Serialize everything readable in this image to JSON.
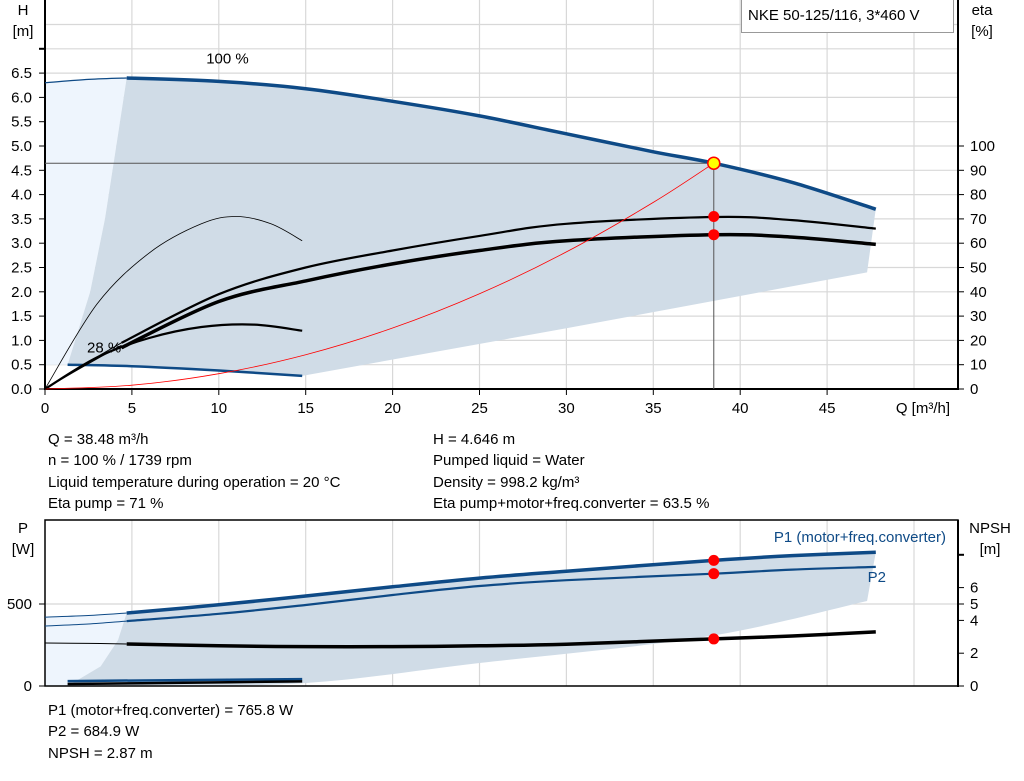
{
  "colors": {
    "curve_blue": "#0e4a86",
    "area_dark": "#d0dce7",
    "area_light": "#eef5fd",
    "duty_point": "#ff0000",
    "duty_fill": "#ffff00",
    "system_curve": "#ff0000"
  },
  "legend_title": "NKE 50-125/116, 3*460 V",
  "chart_data": [
    {
      "type": "line",
      "xlabel": "Q [m³/h]",
      "ylabel": "H\n[m]",
      "ylabel_lines": [
        "H",
        "[m]"
      ],
      "y2label_lines": [
        "eta",
        "[%]"
      ],
      "xticks": [
        "0",
        "5",
        "10",
        "15",
        "20",
        "25",
        "30",
        "35",
        "40",
        "45"
      ],
      "yticks": [
        "0.0",
        "0.5",
        "1.0",
        "1.5",
        "2.0",
        "2.5",
        "3.0",
        "3.5",
        "4.0",
        "4.5",
        "5.0",
        "5.5",
        "6.0",
        "6.5"
      ],
      "y2ticks": [
        "0",
        "10",
        "20",
        "30",
        "40",
        "50",
        "60",
        "70",
        "80",
        "90",
        "100"
      ],
      "xlim": [
        0,
        52.5
      ],
      "ylim": [
        0,
        8
      ],
      "y2lim": [
        0,
        164
      ],
      "grid": true,
      "annotations": [
        {
          "text": "100 %",
          "x": 10.5,
          "y": 6.7
        },
        {
          "text": "28 %",
          "x": 3.4,
          "y": 0.75
        }
      ],
      "series": [
        {
          "id": "h100",
          "x": [
            4.7,
            10,
            15,
            20,
            25,
            30,
            35,
            38.48,
            43,
            47.8
          ],
          "y": [
            6.4,
            6.33,
            6.18,
            5.92,
            5.62,
            5.25,
            4.88,
            4.646,
            4.25,
            3.7
          ]
        },
        {
          "id": "h100_ext",
          "x": [
            0,
            2.5,
            4.7
          ],
          "y": [
            6.3,
            6.37,
            6.4
          ]
        },
        {
          "id": "h28",
          "x": [
            1.3,
            5,
            10,
            14.8
          ],
          "y": [
            0.5,
            0.47,
            0.38,
            0.27
          ]
        },
        {
          "id": "eta_pump",
          "axis": "eta",
          "x": [
            4.4,
            10,
            15,
            20,
            25,
            30,
            38.48,
            43,
            47.8
          ],
          "y": [
            19,
            39,
            50,
            57,
            63,
            68,
            70.8,
            69.5,
            66
          ]
        },
        {
          "id": "eta_total",
          "axis": "eta",
          "x": [
            4.4,
            10,
            15,
            20,
            25,
            30,
            38.48,
            43,
            47.8
          ],
          "y": [
            17,
            36,
            44.5,
            51.5,
            57,
            61,
            63.5,
            62.5,
            59.5
          ]
        },
        {
          "id": "eta_ext",
          "axis": "eta",
          "x": [
            0,
            2,
            4.4
          ],
          "y": [
            0,
            9,
            19
          ]
        },
        {
          "id": "eta28_pump",
          "axis": "eta",
          "x": [
            0,
            3,
            6,
            9,
            11,
            13,
            14.8
          ],
          "y": [
            0,
            35,
            56,
            68,
            71,
            68,
            61
          ]
        },
        {
          "id": "eta28_total",
          "axis": "eta",
          "x": [
            0,
            3,
            6,
            9,
            12,
            14.8
          ],
          "y": [
            0,
            13,
            21,
            25.5,
            26.5,
            24
          ]
        },
        {
          "id": "system",
          "x": [
            0,
            5,
            10,
            15,
            20,
            25,
            30,
            35,
            38.48
          ],
          "y": [
            0,
            0.078,
            0.314,
            0.706,
            1.255,
            1.96,
            2.82,
            3.84,
            4.646
          ]
        }
      ],
      "duty_point": {
        "Q": 38.48,
        "H": 4.646,
        "eta_pump": 71,
        "eta_total": 63.5
      }
    },
    {
      "type": "line",
      "ylabel_lines": [
        "P",
        "[W]"
      ],
      "y2label_lines": [
        "NPSH",
        "[m]"
      ],
      "yticks": [
        "0",
        "500"
      ],
      "y2ticks": [
        "0",
        "2",
        "4",
        "5",
        "6"
      ],
      "xlim": [
        0,
        52.5
      ],
      "ylim": [
        0,
        1012
      ],
      "y2lim": [
        0,
        10.1
      ],
      "grid": true,
      "series": [
        {
          "id": "p1",
          "name": "P1 (motor+freq.converter)",
          "x": [
            4.7,
            10,
            15,
            20,
            25,
            30,
            38.48,
            43,
            47.8
          ],
          "y": [
            445,
            495,
            549,
            605,
            658,
            700,
            766,
            795,
            815
          ]
        },
        {
          "id": "p1_ext",
          "x": [
            0,
            2.5,
            4.7
          ],
          "y": [
            420,
            430,
            445
          ]
        },
        {
          "id": "p2",
          "name": "P2",
          "x": [
            4.7,
            10,
            15,
            20,
            25,
            30,
            38.48,
            43,
            47.8
          ],
          "y": [
            396,
            440,
            494,
            555,
            610,
            645,
            685,
            710,
            726
          ]
        },
        {
          "id": "p2_ext",
          "x": [
            0,
            2.5,
            4.7
          ],
          "y": [
            366,
            378,
            396
          ]
        },
        {
          "id": "npsh",
          "axis": "npsh",
          "x": [
            4.7,
            10,
            15,
            20,
            25,
            30,
            38.48,
            43,
            47.8
          ],
          "y": [
            2.56,
            2.45,
            2.4,
            2.4,
            2.45,
            2.55,
            2.87,
            3.05,
            3.3
          ]
        },
        {
          "id": "npsh_ext",
          "axis": "npsh",
          "x": [
            0,
            2.5,
            4.7
          ],
          "y": [
            2.62,
            2.6,
            2.56
          ]
        },
        {
          "id": "p1_28",
          "x": [
            1.3,
            8,
            14.8
          ],
          "y": [
            30,
            36,
            42
          ]
        },
        {
          "id": "p2_28",
          "x": [
            1.3,
            8,
            14.8
          ],
          "y": [
            12,
            20,
            28
          ]
        }
      ],
      "duty_point": {
        "P1": 765.8,
        "P2": 684.9,
        "NPSH": 2.87
      }
    }
  ],
  "results_top": {
    "left": [
      "Q = 38.48 m³/h",
      "n = 100 % / 1739 rpm",
      "Liquid temperature during operation = 20 °C",
      "Eta pump = 71 %"
    ],
    "right": [
      "H = 4.646 m",
      "Pumped liquid = Water",
      "Density = 998.2 kg/m³",
      "Eta pump+motor+freq.converter = 63.5 %"
    ]
  },
  "results_bottom": [
    "P1 (motor+freq.converter) = 765.8 W",
    "P2 = 684.9 W",
    "NPSH = 2.87 m"
  ]
}
